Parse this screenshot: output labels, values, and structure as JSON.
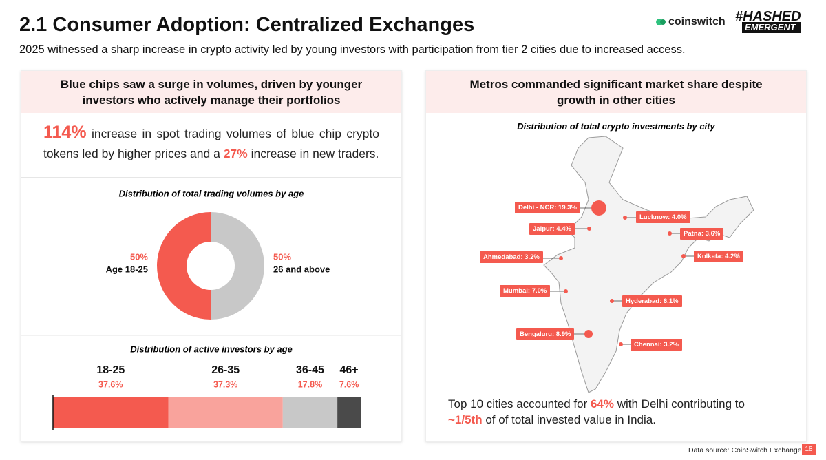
{
  "header": {
    "title": "2.1 Consumer Adoption: Centralized Exchanges",
    "subtitle": "2025 witnessed a sharp increase in crypto activity led by young investors with participation from tier 2 cities due to increased access.",
    "logos": [
      "coinswitch",
      "#HASHED",
      "EMERGENT"
    ]
  },
  "left_panel": {
    "heading": "Blue chips saw a surge in volumes, driven by younger investors who actively manage their portfolios",
    "highlight": [
      "114%",
      " increase in spot trading volumes of blue chip crypto tokens led by higher prices and a ",
      "27%",
      " increase in new traders."
    ]
  },
  "chart_data": [
    {
      "type": "donut",
      "title": "Distribution of total trading volumes by age",
      "categories": [
        "Age 18-25",
        "26 and above"
      ],
      "values": [
        50,
        50
      ],
      "value_labels": [
        "50%",
        "50%"
      ],
      "colors": [
        "#f45a4f",
        "#c8c8c8"
      ]
    },
    {
      "type": "stacked_bar",
      "title": "Distribution of active investors by age",
      "categories": [
        "18-25",
        "26-35",
        "36-45",
        "46+"
      ],
      "values": [
        37.6,
        37.3,
        17.8,
        7.6
      ],
      "value_labels": [
        "37.6%",
        "37.3%",
        "17.8%",
        "7.6%"
      ],
      "colors": [
        "#f45a4f",
        "#f9a39c",
        "#c8c8c8",
        "#4a4a4a"
      ]
    }
  ],
  "right_panel": {
    "heading": "Metros commanded significant market share despite growth in other cities",
    "map_title": "Distribution of total crypto investments by city",
    "cities": [
      "Delhi - NCR: 19.3%",
      "Lucknow: 4.0%",
      "Jaipur: 4.4%",
      "Patna: 3.6%",
      "Ahmedabad: 3.2%",
      "Kolkata: 4.2%",
      "Mumbai: 7.0%",
      "Hyderabad: 6.1%",
      "Bengaluru: 8.9%",
      "Chennai: 3.2%"
    ],
    "footer": [
      "Top 10 cities accounted for ",
      "64%",
      " with Delhi contributing to ",
      "~1/5th",
      " of of total invested value in India."
    ]
  },
  "source": "Data source: CoinSwitch Exchange",
  "page": "18"
}
